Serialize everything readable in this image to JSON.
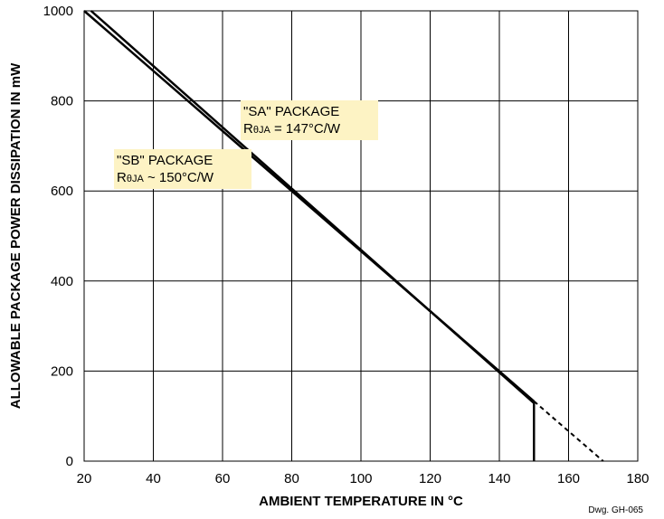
{
  "chart_data": {
    "type": "line",
    "xlabel": "AMBIENT TEMPERATURE IN °C",
    "ylabel": "ALLOWABLE PACKAGE POWER DISSIPATION IN mW",
    "xlim": [
      20,
      180
    ],
    "ylim": [
      0,
      1000
    ],
    "xticks": [
      20,
      40,
      60,
      80,
      100,
      120,
      140,
      160,
      180
    ],
    "yticks": [
      0,
      200,
      400,
      600,
      800,
      1000
    ],
    "grid": true,
    "series": [
      {
        "name": "\"SA\" PACKAGE",
        "x": [
          22,
          150
        ],
        "y": [
          1000,
          129
        ]
      },
      {
        "name": "\"SB\" PACKAGE",
        "x": [
          20,
          150
        ],
        "y": [
          1000,
          133
        ]
      }
    ],
    "extrapolation": {
      "style": "dashed",
      "x": [
        150,
        170
      ],
      "y": [
        133,
        0
      ]
    },
    "cutoff": {
      "x": 150,
      "y_top": 133
    },
    "annotations": [
      {
        "id": "sa",
        "line1": "\"SA\" PACKAGE",
        "r": "R",
        "sub": "θJA",
        "rest": " = 147°C/W",
        "color": "#fdf3c4"
      },
      {
        "id": "sb",
        "line1": "\"SB\" PACKAGE",
        "r": "R",
        "sub": "θJA",
        "rest": " ~ 150°C/W",
        "color": "#fdf3c4"
      }
    ],
    "credit": "Dwg. GH-065"
  }
}
